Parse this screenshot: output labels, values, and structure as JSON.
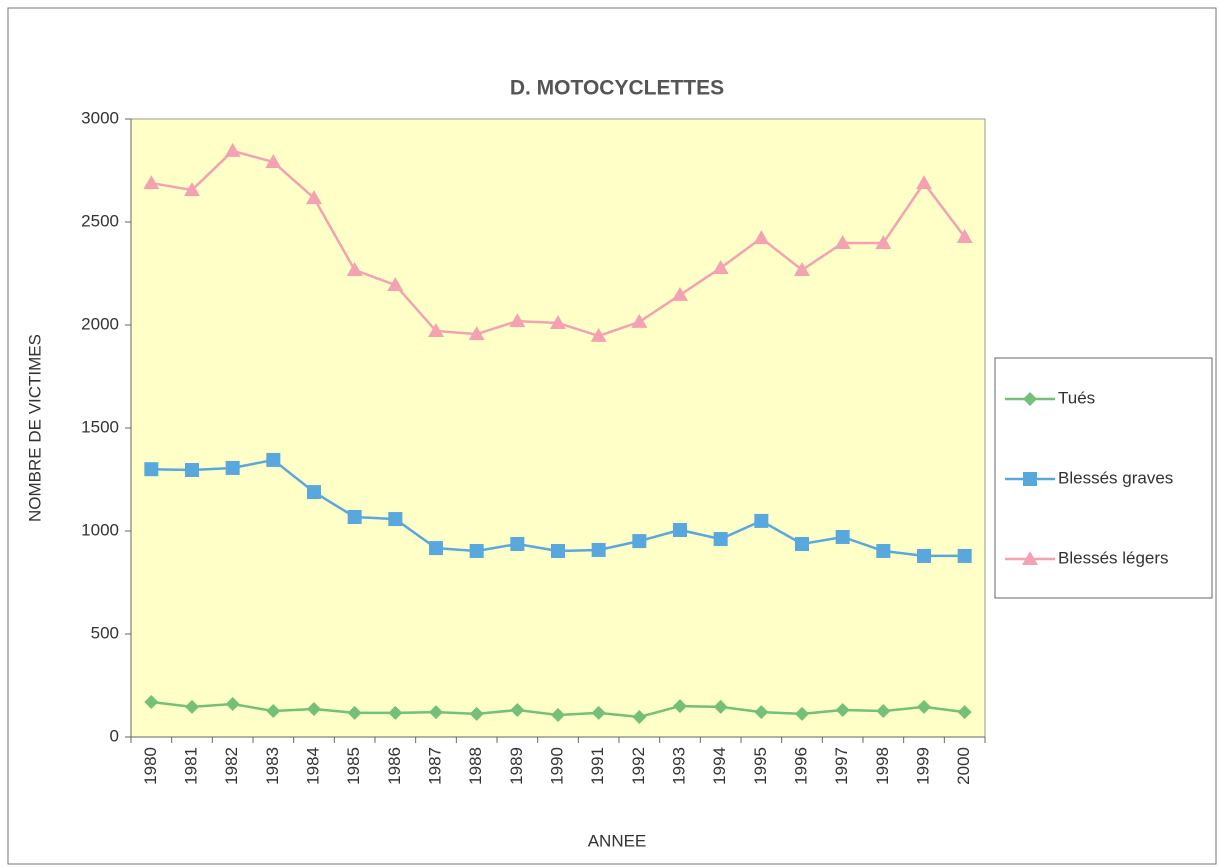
{
  "chart_data": {
    "type": "line",
    "title": "D. MOTOCYCLETTES",
    "xlabel": "ANNEE",
    "ylabel": "NOMBRE DE VICTIMES",
    "categories": [
      "1980",
      "1981",
      "1982",
      "1983",
      "1984",
      "1985",
      "1986",
      "1987",
      "1988",
      "1989",
      "1990",
      "1991",
      "1992",
      "1993",
      "1994",
      "1995",
      "1996",
      "1997",
      "1998",
      "1999",
      "2000"
    ],
    "series": [
      {
        "name": "Tués",
        "color": "#74c076",
        "marker": "diamond",
        "values": [
          170,
          146,
          160,
          126,
          136,
          117,
          117,
          121,
          112,
          131,
          107,
          117,
          97,
          150,
          146,
          121,
          112,
          131,
          126,
          146,
          121
        ]
      },
      {
        "name": "Blessés graves",
        "color": "#58a8de",
        "marker": "square",
        "values": [
          1300,
          1296,
          1306,
          1345,
          1189,
          1068,
          1058,
          917,
          903,
          937,
          903,
          908,
          951,
          1005,
          961,
          1049,
          937,
          971,
          903,
          879,
          879
        ]
      },
      {
        "name": "Blessés légers",
        "color": "#f4a2b2",
        "marker": "triangle",
        "values": [
          2689,
          2655,
          2845,
          2791,
          2616,
          2267,
          2194,
          1971,
          1956,
          2019,
          2010,
          1947,
          2015,
          2146,
          2277,
          2422,
          2267,
          2398,
          2398,
          2689,
          2427
        ]
      }
    ],
    "ylim": [
      0,
      3000
    ],
    "yticks": [
      0,
      500,
      1000,
      1500,
      2000,
      2500,
      3000
    ],
    "legend": "right",
    "plot_background": "#ffffc8"
  }
}
